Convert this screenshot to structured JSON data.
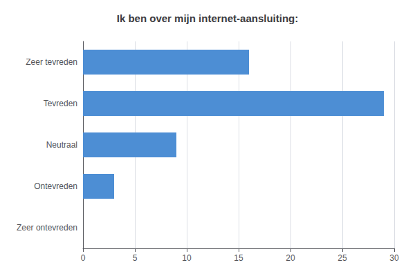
{
  "chart_data": {
    "type": "bar",
    "orientation": "horizontal",
    "title": "Ik ben over mijn internet-aansluiting:",
    "categories": [
      "Zeer tevreden",
      "Tevreden",
      "Neutraal",
      "Ontevreden",
      "Zeer ontevreden"
    ],
    "values": [
      16,
      29,
      9,
      3,
      0
    ],
    "color": "#4d8ed4",
    "xlim": [
      0,
      30
    ],
    "xticks": [
      0,
      5,
      10,
      15,
      20,
      25,
      30
    ],
    "grid": true
  }
}
